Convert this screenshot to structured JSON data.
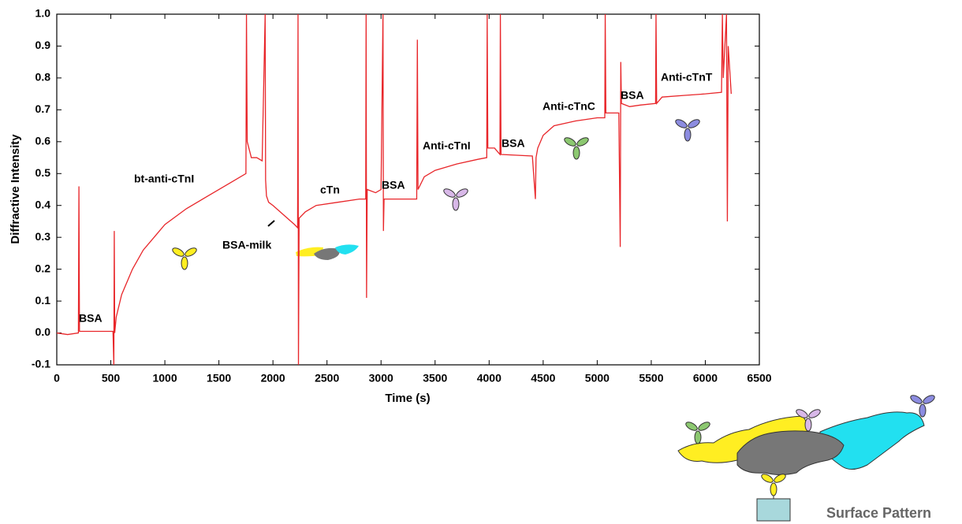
{
  "chart_data": {
    "type": "line",
    "color": "#e8262a",
    "y_label": "Diffractive Intensity",
    "x_label": "Time (s)",
    "xlim": [
      0,
      6500
    ],
    "xticks": [
      0,
      500,
      1000,
      1500,
      2000,
      2500,
      3000,
      3500,
      4000,
      4500,
      5000,
      5500,
      6000,
      6500
    ],
    "ylim": [
      -0.1,
      1.0
    ],
    "yticks": [
      {
        "value": -0.1,
        "label": "-0.1"
      },
      {
        "value": 0,
        "label": "0.0"
      },
      0.1,
      0.2,
      0.3,
      0.4,
      0.5,
      0.6,
      0.7,
      0.8,
      0.9,
      {
        "value": 1,
        "label": "1.0"
      }
    ],
    "x": [
      0,
      100,
      200,
      205,
      210,
      300,
      520,
      528,
      532,
      536,
      550,
      600,
      700,
      800,
      900,
      1000,
      1200,
      1400,
      1600,
      1750,
      1755,
      1762,
      1800,
      1850,
      1900,
      1928,
      1932,
      1940,
      1960,
      2000,
      2100,
      2200,
      2228,
      2232,
      2236,
      2242,
      2300,
      2400,
      2600,
      2800,
      2858,
      2862,
      2866,
      2872,
      2950,
      3000,
      3018,
      3022,
      3028,
      3200,
      3330,
      3336,
      3342,
      3400,
      3500,
      3700,
      3900,
      3978,
      3982,
      3988,
      4050,
      4100,
      4104,
      4110,
      4400,
      4428,
      4434,
      4450,
      4500,
      4600,
      4800,
      5000,
      5070,
      5074,
      5080,
      5200,
      5213,
      5218,
      5224,
      5300,
      5400,
      5540,
      5544,
      5550,
      5600,
      5800,
      6000,
      6150,
      6158,
      6166,
      6196,
      6204,
      6212,
      6240
    ],
    "values": [
      0.0,
      -0.005,
      0.0,
      0.46,
      0.005,
      0.005,
      0.005,
      -0.1,
      0.32,
      0.0,
      0.05,
      0.12,
      0.2,
      0.26,
      0.3,
      0.34,
      0.39,
      0.43,
      0.47,
      0.5,
      1.0,
      0.6,
      0.55,
      0.55,
      0.54,
      1.0,
      0.48,
      0.43,
      0.41,
      0.4,
      0.37,
      0.34,
      0.33,
      1.0,
      -0.1,
      0.36,
      0.38,
      0.4,
      0.41,
      0.42,
      0.42,
      1.0,
      0.11,
      0.45,
      0.44,
      0.45,
      1.0,
      0.32,
      0.42,
      0.42,
      0.42,
      0.92,
      0.45,
      0.49,
      0.51,
      0.53,
      0.545,
      0.55,
      1.0,
      0.58,
      0.58,
      0.56,
      1.0,
      0.56,
      0.555,
      0.42,
      0.55,
      0.58,
      0.62,
      0.65,
      0.665,
      0.675,
      0.675,
      1.0,
      0.69,
      0.69,
      0.27,
      0.85,
      0.72,
      0.71,
      0.715,
      0.72,
      1.0,
      0.72,
      0.74,
      0.745,
      0.75,
      0.755,
      1.0,
      0.8,
      1.0,
      0.35,
      0.9,
      0.75
    ],
    "annotations": [
      "BSA",
      "bt-anti-cTnI",
      "BSA-milk",
      "cTn",
      "BSA",
      "Anti-cTnI",
      "BSA",
      "Anti-cTnC",
      "BSA",
      "Anti-cTnT"
    ],
    "diagram_label": "Surface Pattern"
  }
}
